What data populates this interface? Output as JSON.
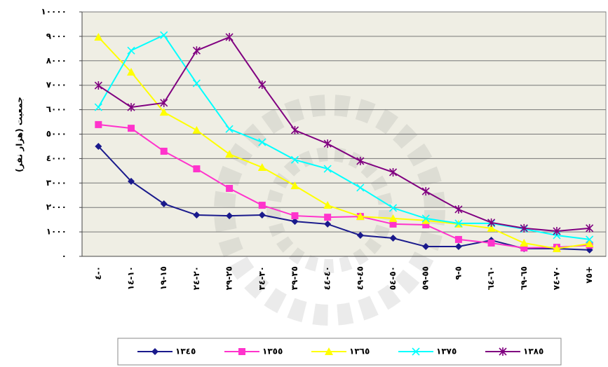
{
  "chart_data": {
    "type": "line",
    "y_label": "جمعیت (هزار نفر)",
    "categories": [
      "٠-٤",
      "١٠-١٤",
      "١٥-١٩",
      "٢٠-٢٤",
      "٢٥-٢٩",
      "٣٠-٣٤",
      "٣٥-٣٩",
      "٤٠-٤٤",
      "٤٥-٤٩",
      "٥٠-٥٤",
      "٥٥-٥٩",
      "٥-٩",
      "٦٠-٦٤",
      "٦٥-٦٩",
      "٧٠-٧٤",
      "٧٥+"
    ],
    "ylim": [
      0,
      10000
    ],
    "yticks": [
      {
        "value": 0,
        "label": "٠"
      },
      {
        "value": 1000,
        "label": "١٠٠٠"
      },
      {
        "value": 2000,
        "label": "٢٠٠٠"
      },
      {
        "value": 3000,
        "label": "٣٠٠٠"
      },
      {
        "value": 4000,
        "label": "٤٠٠٠"
      },
      {
        "value": 5000,
        "label": "٥٠٠٠"
      },
      {
        "value": 6000,
        "label": "٦٠٠٠"
      },
      {
        "value": 7000,
        "label": "٧٠٠٠"
      },
      {
        "value": 8000,
        "label": "٨٠٠٠"
      },
      {
        "value": 9000,
        "label": "٩٠٠٠"
      },
      {
        "value": 10000,
        "label": "١٠٠٠٠"
      }
    ],
    "grid": true,
    "legend": "bottom",
    "series": [
      {
        "name": "١٣٤٥",
        "color": "#1a1a8c",
        "marker": "diamond",
        "values": [
          4500,
          3070,
          2150,
          1690,
          1660,
          1690,
          1430,
          1320,
          860,
          745,
          400,
          400,
          660,
          315,
          315,
          260
        ]
      },
      {
        "name": "١٣٥٥",
        "color": "#ff33cc",
        "marker": "square",
        "values": [
          5390,
          5240,
          4300,
          3580,
          2780,
          2090,
          1660,
          1600,
          1630,
          1320,
          1290,
          690,
          545,
          345,
          370,
          460
        ]
      },
      {
        "name": "١٣٦٥",
        "color": "#ffff00",
        "marker": "triangle",
        "values": [
          8970,
          7540,
          5900,
          5160,
          4180,
          3640,
          2890,
          2090,
          1630,
          1550,
          1470,
          1320,
          1150,
          545,
          315,
          520
        ]
      },
      {
        "name": "١٣٧٥",
        "color": "#00ffff",
        "marker": "cross",
        "values": [
          6100,
          8420,
          9050,
          7080,
          5210,
          4670,
          3950,
          3580,
          2810,
          1980,
          1550,
          1350,
          1350,
          1120,
          860,
          690
        ]
      },
      {
        "name": "١٣٨٥",
        "color": "#800080",
        "marker": "star",
        "values": [
          6990,
          6100,
          6280,
          8420,
          8970,
          7020,
          5160,
          4610,
          3900,
          3440,
          2660,
          1920,
          1380,
          1150,
          1030,
          1150
        ]
      }
    ]
  }
}
